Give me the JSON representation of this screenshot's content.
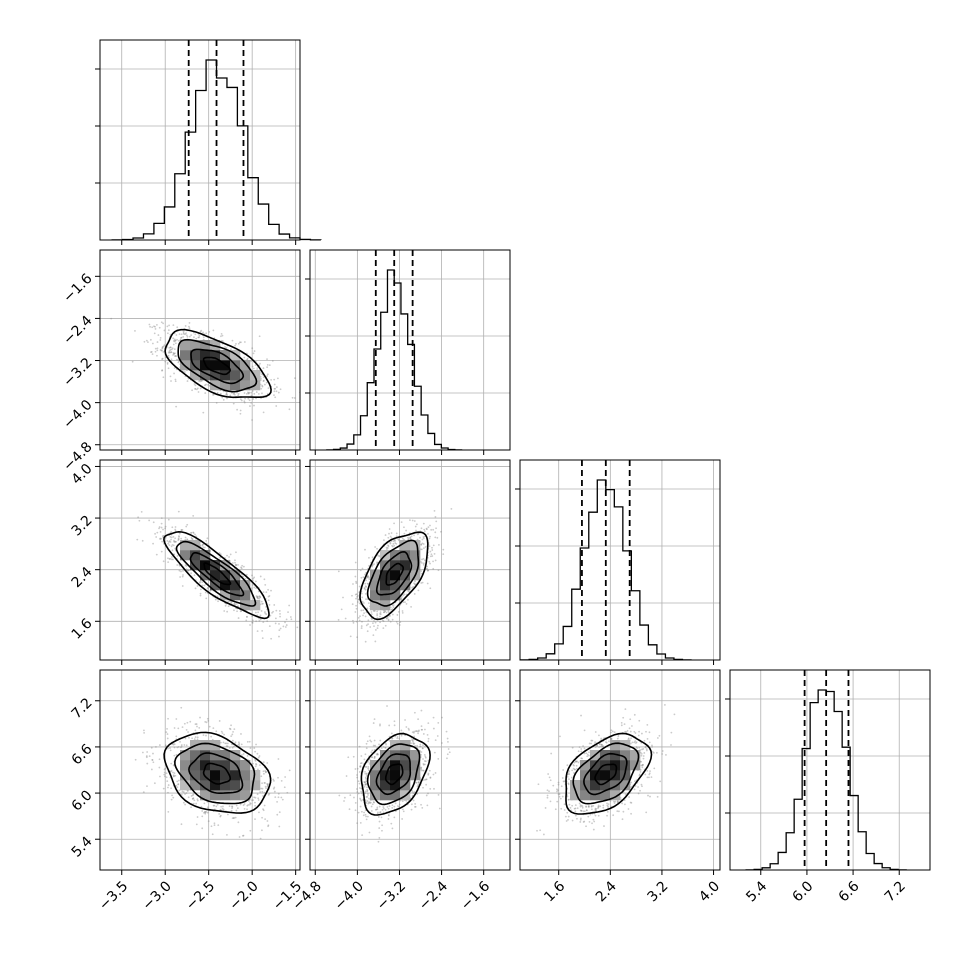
{
  "chart_data": {
    "type": "corner",
    "parameters": [
      "",
      "",
      "",
      ""
    ],
    "colors": {
      "hist": "#000000",
      "quantile": "#000000",
      "grid": "#b0b0b0",
      "points": "#8c8c8c",
      "density": "#000000"
    },
    "quantile_levels": [
      0.16,
      0.5,
      0.84
    ],
    "axes": [
      {
        "range": [
          -3.75,
          -1.45
        ],
        "ticks": [
          -3.5,
          -3.0,
          -2.5,
          -2.0,
          -1.5
        ],
        "tick_labels": [
          "−3.5",
          "−3.0",
          "−2.5",
          "−2.0",
          "−1.5"
        ]
      },
      {
        "range": [
          -4.9,
          -1.1
        ],
        "ticks": [
          -4.8,
          -4.0,
          -3.2,
          -2.4,
          -1.6
        ],
        "tick_labels": [
          "−4.8",
          "−4.0",
          "−3.2",
          "−2.4",
          "−1.6"
        ]
      },
      {
        "range": [
          1.0,
          4.1
        ],
        "ticks": [
          1.6,
          2.4,
          3.2,
          4.0
        ],
        "tick_labels": [
          "1.6",
          "2.4",
          "3.2",
          "4.0"
        ]
      },
      {
        "range": [
          5.0,
          7.6
        ],
        "ticks": [
          5.4,
          6.0,
          6.6,
          7.2
        ],
        "tick_labels": [
          "5.4",
          "6.0",
          "6.6",
          "7.2"
        ]
      }
    ],
    "marginals": [
      {
        "mean": -2.41,
        "std": 0.3,
        "quantiles": [
          -2.73,
          -2.41,
          -2.1
        ]
      },
      {
        "mean": -3.3,
        "std": 0.32,
        "quantiles": [
          -3.65,
          -3.3,
          -2.95
        ]
      },
      {
        "mean": 2.33,
        "std": 0.33,
        "quantiles": [
          1.96,
          2.33,
          2.7
        ]
      },
      {
        "mean": 6.25,
        "std": 0.26,
        "quantiles": [
          5.97,
          6.25,
          6.54
        ]
      }
    ],
    "correlations": [
      {
        "row": 1,
        "col": 0,
        "rho": -0.6
      },
      {
        "row": 2,
        "col": 0,
        "rho": -0.85
      },
      {
        "row": 2,
        "col": 1,
        "rho": 0.55
      },
      {
        "row": 3,
        "col": 0,
        "rho": -0.3
      },
      {
        "row": 3,
        "col": 1,
        "rho": 0.35
      },
      {
        "row": 3,
        "col": 2,
        "rho": 0.45
      }
    ],
    "contour_levels_sigma": [
      0.5,
      1.0,
      1.5,
      2.0
    ],
    "grid": true,
    "legend": "none"
  }
}
